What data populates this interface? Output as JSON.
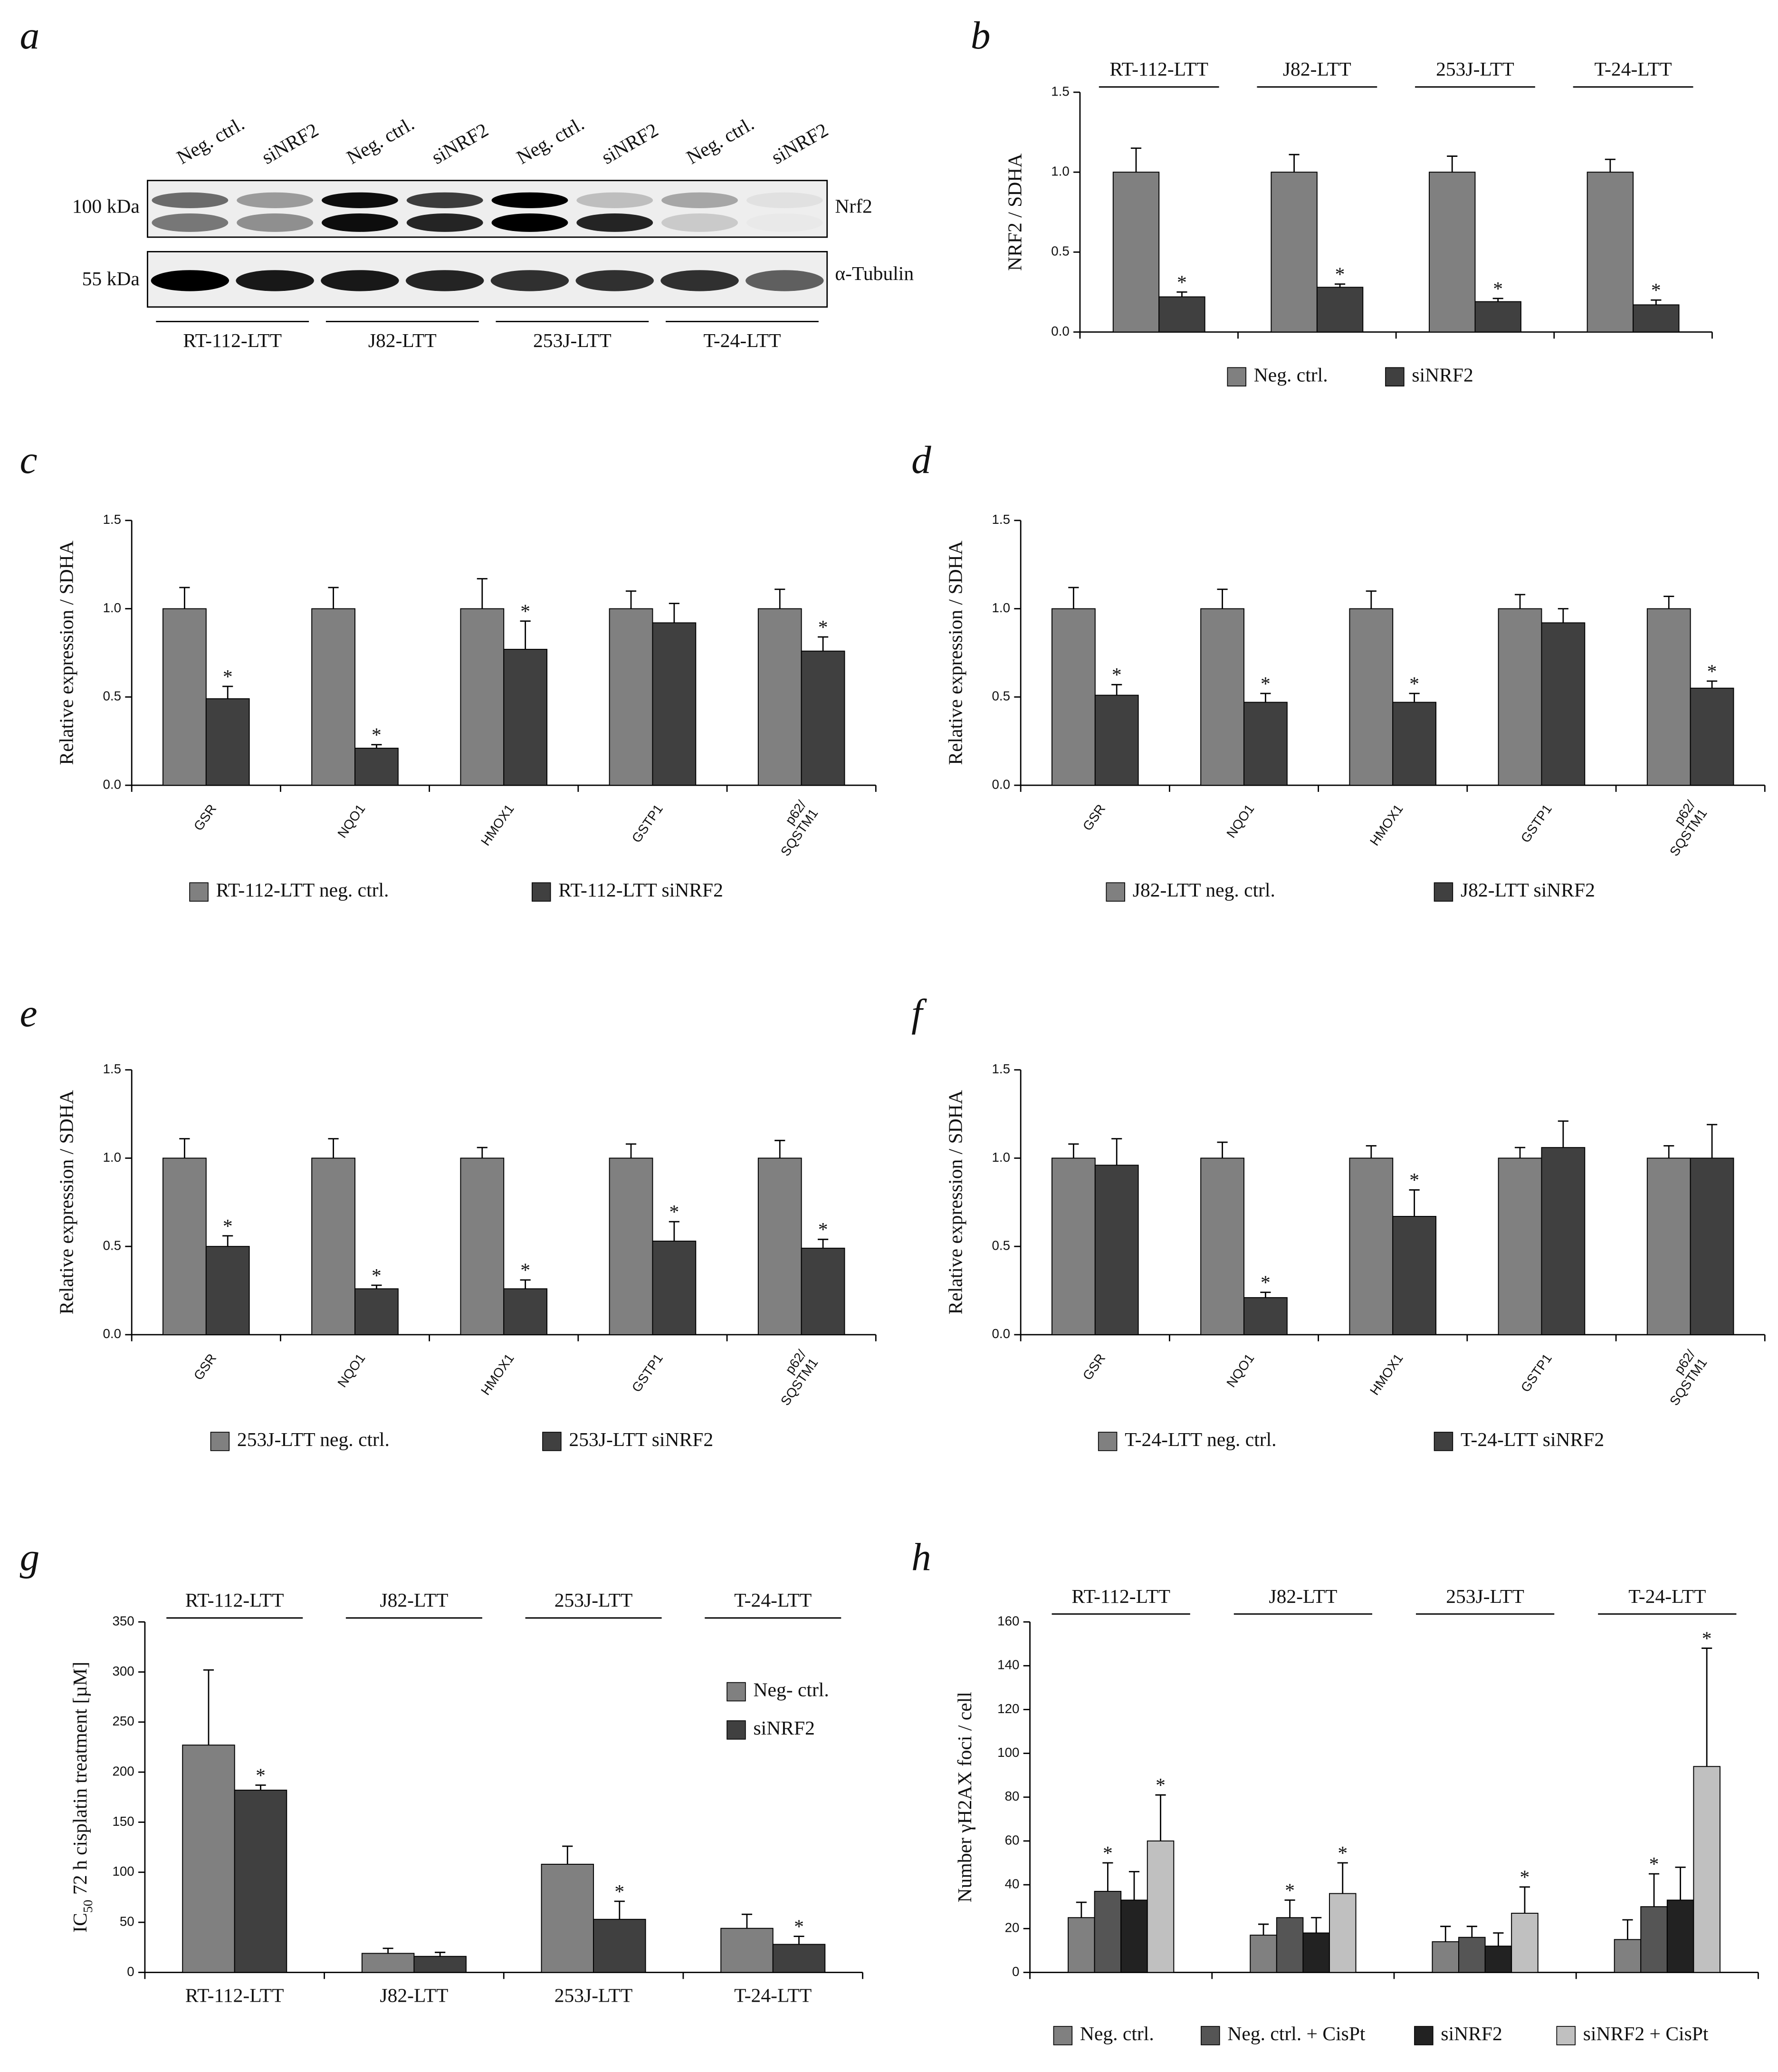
{
  "blot": {
    "panel": "a",
    "lanes": [
      "Neg. ctrl.",
      "siNRF2",
      "Neg. ctrl.",
      "siNRF2",
      "Neg. ctrl.",
      "siNRF2",
      "Neg. ctrl.",
      "siNRF2"
    ],
    "markers": [
      "100 kDa",
      "55 kDa"
    ],
    "proteins": [
      "Nrf2",
      "α-Tubulin"
    ],
    "groups": [
      "RT-112-LTT",
      "J82-LTT",
      "253J-LTT",
      "T-24-LTT"
    ]
  },
  "chart_data": [
    {
      "type": "bar",
      "panel": "b",
      "ylabel": "NRF2 / SDHA",
      "headers": [
        "RT-112-LTT",
        "J82-LTT",
        "253J-LTT",
        "T-24-LTT"
      ],
      "ylim": [
        0,
        1.5
      ],
      "yticks": [
        {
          "value": 0,
          "label": "0.0"
        },
        0.5,
        {
          "value": 1,
          "label": "1.0"
        },
        1.5
      ],
      "legend": "bottom",
      "series": [
        {
          "name": "Neg. ctrl.",
          "color": "#808080",
          "values": [
            1,
            1,
            1,
            1
          ],
          "errors": [
            0.15,
            0.11,
            0.1,
            0.08
          ]
        },
        {
          "name": "siNRF2",
          "color": "#404040",
          "values": [
            0.22,
            0.28,
            0.19,
            0.17
          ],
          "errors": [
            0.03,
            0.02,
            0.02,
            0.03
          ],
          "annotations": [
            "*",
            "*",
            "*",
            "*"
          ]
        }
      ]
    },
    {
      "type": "bar",
      "panel": "c",
      "ylabel": "Relative expression / SDHA",
      "categories": [
        "GSR",
        "NQO1",
        "HMOX1",
        "GSTP1",
        "p62/ SQSTM1"
      ],
      "rotate_labels": true,
      "ylim": [
        0,
        1.5
      ],
      "yticks": [
        {
          "value": 0,
          "label": "0.0"
        },
        0.5,
        {
          "value": 1,
          "label": "1.0"
        },
        1.5
      ],
      "legend": "bottom",
      "series": [
        {
          "name": "RT-112-LTT neg. ctrl.",
          "color": "#808080",
          "values": [
            1,
            1,
            1,
            1,
            1
          ],
          "errors": [
            0.12,
            0.12,
            0.17,
            0.1,
            0.11
          ]
        },
        {
          "name": "RT-112-LTT siNRF2",
          "color": "#404040",
          "values": [
            0.49,
            0.21,
            0.77,
            0.92,
            0.76
          ],
          "errors": [
            0.07,
            0.02,
            0.16,
            0.11,
            0.08
          ],
          "annotations": [
            "*",
            "*",
            "*",
            null,
            "*"
          ]
        }
      ]
    },
    {
      "type": "bar",
      "panel": "d",
      "ylabel": "Relative expression / SDHA",
      "categories": [
        "GSR",
        "NQO1",
        "HMOX1",
        "GSTP1",
        "p62/ SQSTM1"
      ],
      "rotate_labels": true,
      "ylim": [
        0,
        1.5
      ],
      "yticks": [
        {
          "value": 0,
          "label": "0.0"
        },
        0.5,
        {
          "value": 1,
          "label": "1.0"
        },
        1.5
      ],
      "legend": "bottom",
      "series": [
        {
          "name": "J82-LTT neg. ctrl.",
          "color": "#808080",
          "values": [
            1,
            1,
            1,
            1,
            1
          ],
          "errors": [
            0.12,
            0.11,
            0.1,
            0.08,
            0.07
          ]
        },
        {
          "name": "J82-LTT siNRF2",
          "color": "#404040",
          "values": [
            0.51,
            0.47,
            0.47,
            0.92,
            0.55
          ],
          "errors": [
            0.06,
            0.05,
            0.05,
            0.08,
            0.04
          ],
          "annotations": [
            "*",
            "*",
            "*",
            null,
            "*"
          ]
        }
      ]
    },
    {
      "type": "bar",
      "panel": "e",
      "ylabel": "Relative expression / SDHA",
      "categories": [
        "GSR",
        "NQO1",
        "HMOX1",
        "GSTP1",
        "p62/ SQSTM1"
      ],
      "rotate_labels": true,
      "ylim": [
        0,
        1.5
      ],
      "yticks": [
        {
          "value": 0,
          "label": "0.0"
        },
        0.5,
        {
          "value": 1,
          "label": "1.0"
        },
        1.5
      ],
      "legend": "bottom",
      "series": [
        {
          "name": "253J-LTT neg. ctrl.",
          "color": "#808080",
          "values": [
            1,
            1,
            1,
            1,
            1
          ],
          "errors": [
            0.11,
            0.11,
            0.06,
            0.08,
            0.1
          ]
        },
        {
          "name": "253J-LTT siNRF2",
          "color": "#404040",
          "values": [
            0.5,
            0.26,
            0.26,
            0.53,
            0.49
          ],
          "errors": [
            0.06,
            0.02,
            0.05,
            0.11,
            0.05
          ],
          "annotations": [
            "*",
            "*",
            "*",
            "*",
            "*"
          ]
        }
      ]
    },
    {
      "type": "bar",
      "panel": "f",
      "ylabel": "Relative expression / SDHA",
      "categories": [
        "GSR",
        "NQO1",
        "HMOX1",
        "GSTP1",
        "p62/ SQSTM1"
      ],
      "rotate_labels": true,
      "ylim": [
        0,
        1.5
      ],
      "yticks": [
        {
          "value": 0,
          "label": "0.0"
        },
        0.5,
        {
          "value": 1,
          "label": "1.0"
        },
        1.5
      ],
      "legend": "bottom",
      "series": [
        {
          "name": "T-24-LTT neg. ctrl.",
          "color": "#808080",
          "values": [
            1,
            1,
            1,
            1,
            1
          ],
          "errors": [
            0.08,
            0.09,
            0.07,
            0.06,
            0.07
          ]
        },
        {
          "name": "T-24-LTT siNRF2",
          "color": "#404040",
          "values": [
            0.96,
            0.21,
            0.67,
            1.06,
            1
          ],
          "errors": [
            0.15,
            0.03,
            0.15,
            0.15,
            0.19
          ],
          "annotations": [
            null,
            "*",
            "*",
            null,
            null
          ]
        }
      ]
    },
    {
      "type": "bar",
      "panel": "g",
      "ylabel": [
        "IC",
        "50",
        " 72 h cisplatin treatment [µM]"
      ],
      "headers": [
        "RT-112-LTT",
        "J82-LTT",
        "253J-LTT",
        "T-24-LTT"
      ],
      "categories": [
        "RT-112-LTT",
        "J82-LTT",
        "253J-LTT",
        "T-24-LTT"
      ],
      "ylim": [
        0,
        350
      ],
      "yticks": [
        0,
        50,
        100,
        150,
        200,
        250,
        300,
        350
      ],
      "legend": "upper right",
      "series": [
        {
          "name": "Neg- ctrl.",
          "color": "#808080",
          "values": [
            227,
            19,
            108,
            44
          ],
          "errors": [
            75,
            5,
            18,
            14
          ]
        },
        {
          "name": "siNRF2",
          "color": "#404040",
          "values": [
            182,
            16,
            53,
            28
          ],
          "errors": [
            5,
            4,
            18,
            8
          ],
          "annotations": [
            "*",
            null,
            "*",
            "*"
          ]
        }
      ]
    },
    {
      "type": "bar",
      "panel": "h",
      "ylabel": "Number γH2AX foci / cell",
      "headers": [
        "RT-112-LTT",
        "J82-LTT",
        "253J-LTT",
        "T-24-LTT"
      ],
      "ylim": [
        0,
        160
      ],
      "yticks": [
        0,
        20,
        40,
        60,
        80,
        100,
        120,
        140,
        160
      ],
      "legend": "bottom",
      "series": [
        {
          "name": "Neg. ctrl.",
          "color": "#808080",
          "values": [
            25,
            17,
            14,
            15
          ],
          "errors": [
            7,
            5,
            7,
            9
          ]
        },
        {
          "name": "Neg. ctrl. + CisPt",
          "color": "#555555",
          "values": [
            37,
            25,
            16,
            30
          ],
          "errors": [
            13,
            8,
            5,
            15
          ],
          "annotations": [
            "*",
            "*",
            null,
            "*"
          ]
        },
        {
          "name": "siNRF2",
          "color": "#222222",
          "values": [
            33,
            18,
            12,
            33
          ],
          "errors": [
            13,
            7,
            6,
            15
          ]
        },
        {
          "name": "siNRF2 + CisPt",
          "color": "#c0c0c0",
          "values": [
            60,
            36,
            27,
            94
          ],
          "errors": [
            21,
            14,
            12,
            54
          ],
          "annotations": [
            "*",
            "*",
            "*",
            "*"
          ]
        }
      ]
    }
  ]
}
